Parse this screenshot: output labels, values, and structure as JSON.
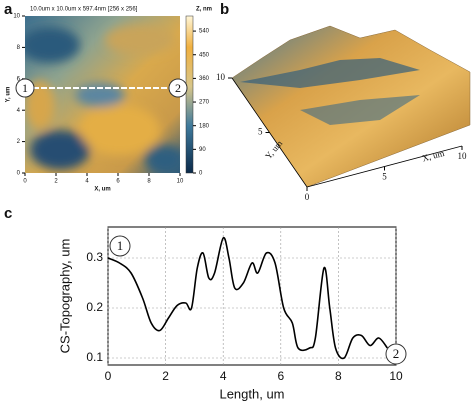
{
  "chart_data": [
    {
      "type": "afm-image",
      "panel": "a",
      "title": "10.0um x 10.0um x 597.4nm [256 x 256]",
      "x_label": "X, um",
      "y_label": "Y, um",
      "xlim": [
        0,
        10
      ],
      "ylim": [
        0,
        10
      ],
      "xticks": [
        0,
        2,
        4,
        6,
        8,
        10
      ],
      "yticks": [
        0,
        2,
        4,
        6,
        8,
        10
      ],
      "colorbar": {
        "label": "Z, nm",
        "lim": [
          0,
          597.4
        ],
        "ticks": [
          0,
          90,
          180,
          270,
          360,
          450,
          540
        ]
      },
      "markers": [
        "1",
        "2"
      ]
    },
    {
      "type": "surface3d",
      "panel": "b",
      "x_label": "X, um",
      "y_label": "Y, um",
      "xlim": [
        0,
        10
      ],
      "ylim": [
        0,
        10
      ],
      "xticks": [
        0,
        5,
        10
      ],
      "yticks": [
        5,
        10
      ]
    },
    {
      "type": "line",
      "panel": "c",
      "x_label": "Length, um",
      "y_label": "CS-Topography, um",
      "x": [
        0,
        0.4,
        0.8,
        1.2,
        1.5,
        1.8,
        2.1,
        2.4,
        2.7,
        2.9,
        3.1,
        3.3,
        3.5,
        3.7,
        4.0,
        4.2,
        4.4,
        4.7,
        5.0,
        5.2,
        5.5,
        5.8,
        6.1,
        6.4,
        6.6,
        7.0,
        7.2,
        7.5,
        7.7,
        7.9,
        8.2,
        8.5,
        8.8,
        9.1,
        9.4,
        9.7
      ],
      "series": [
        {
          "color": "#000000",
          "values": [
            0.3,
            0.29,
            0.27,
            0.22,
            0.17,
            0.155,
            0.18,
            0.205,
            0.21,
            0.2,
            0.28,
            0.31,
            0.26,
            0.27,
            0.34,
            0.3,
            0.24,
            0.25,
            0.29,
            0.27,
            0.31,
            0.29,
            0.2,
            0.17,
            0.12,
            0.12,
            0.14,
            0.28,
            0.2,
            0.12,
            0.1,
            0.14,
            0.145,
            0.125,
            0.14,
            0.12
          ]
        }
      ],
      "xlim": [
        0,
        10
      ],
      "ylim": [
        0.086,
        0.362
      ],
      "xticks": [
        0,
        2,
        4,
        6,
        8,
        10
      ],
      "yticks": [
        0.1,
        0.2,
        0.3
      ],
      "grid": true,
      "annotations": [
        "1",
        "2"
      ]
    }
  ]
}
